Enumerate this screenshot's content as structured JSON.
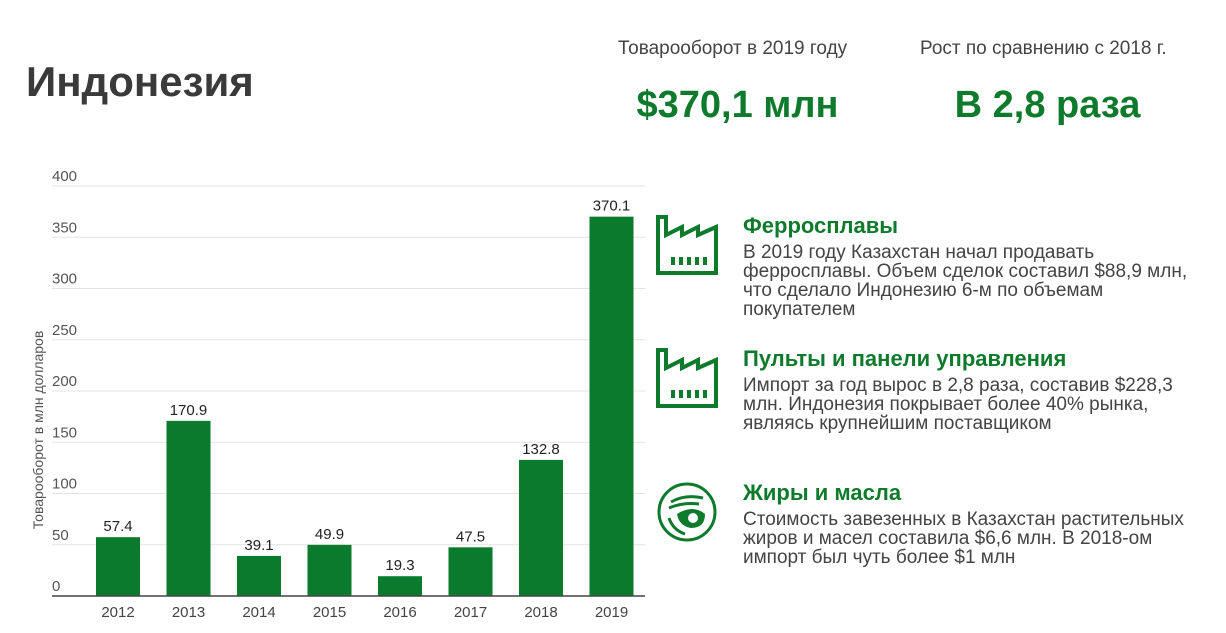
{
  "page": {
    "title": "Индонезия"
  },
  "kpis": [
    {
      "label": "Товарооборот в 2019 году",
      "value": "$370,1 млн"
    },
    {
      "label": "Рост по сравнению с 2018 г.",
      "value": "В 2,8 раза"
    }
  ],
  "chart_data": {
    "type": "bar",
    "categories": [
      "2012",
      "2013",
      "2014",
      "2015",
      "2016",
      "2017",
      "2018",
      "2019"
    ],
    "values": [
      57.4,
      170.9,
      39.1,
      49.9,
      19.3,
      47.5,
      132.8,
      370.1
    ],
    "data_labels": [
      "57.4",
      "170.9",
      "39.1",
      "49.9",
      "19.3",
      "47.5",
      "132.8",
      "370.1"
    ],
    "title": "",
    "xlabel": "",
    "ylabel": "Товарооборот в млн долларов",
    "ylim": [
      0,
      400
    ],
    "yticks": [
      0,
      50,
      100,
      150,
      200,
      250,
      300,
      350,
      400
    ],
    "grid": true,
    "bar_color": "#0a7a2c"
  },
  "items": [
    {
      "icon": "factory-icon",
      "title": "Ферросплавы",
      "text": "В 2019 году Казахстан начал продавать ферросплавы. Объем сделок составил $88,9 млн, что сделало Индонезию 6-м по объемам покупателем"
    },
    {
      "icon": "factory-icon",
      "title": "Пульты и панели управления",
      "text": "Импорт за год вырос в 2,8 раза, составив $228,3 млн. Индонезия покрывает более 40% рынка, являясь крупнейшим поставщиком"
    },
    {
      "icon": "oil-drop-icon",
      "title": "Жиры и масла",
      "text": "Стоимость завезенных в Казахстан растительных жиров и масел составила $6,6 млн. В 2018-ом импорт был чуть более $1 млн"
    }
  ],
  "colors": {
    "accent": "#0e7a2b",
    "bar": "#0a7a2c",
    "grid": "#e3e3e3"
  }
}
